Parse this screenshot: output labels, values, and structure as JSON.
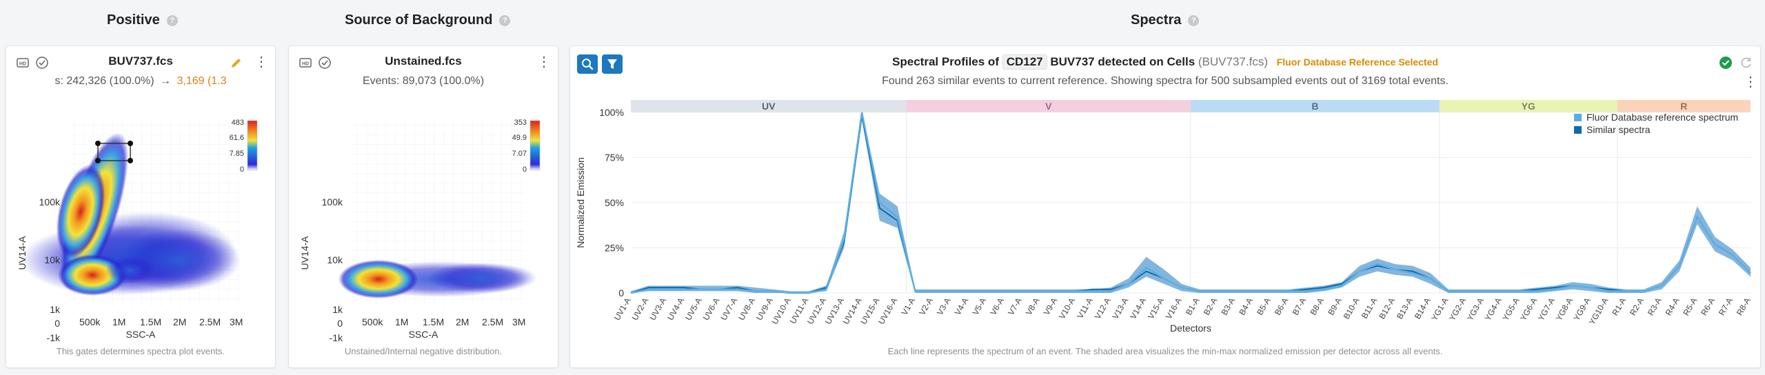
{
  "sections": {
    "positive": "Positive",
    "background": "Source of Background",
    "spectra": "Spectra"
  },
  "positive_card": {
    "file": "BUV737.fcs",
    "summary_prefix": "s: 242,326 (100.0%)",
    "arrow": "→",
    "summary_gated": "3,169 (1.3",
    "x_label": "SSC-A",
    "y_label": "UV14-A",
    "x_ticks": [
      "500k",
      "1M",
      "1.5M",
      "2M",
      "2.5M",
      "3M"
    ],
    "y_ticks": [
      "100k",
      "10k",
      "1k",
      "0",
      "-1k"
    ],
    "colorbar_ticks": [
      "483",
      "61.6",
      "7.85",
      "0"
    ],
    "footnote": "This gates determines spectra plot events."
  },
  "background_card": {
    "file": "Unstained.fcs",
    "summary": "Events: 89,073 (100.0%)",
    "x_label": "SSC-A",
    "y_label": "UV14-A",
    "x_ticks": [
      "500k",
      "1M",
      "1.5M",
      "2M",
      "2.5M",
      "3M"
    ],
    "y_ticks": [
      "100k",
      "10k",
      "1k",
      "0",
      "-1k"
    ],
    "colorbar_ticks": [
      "353",
      "49.9",
      "7.07",
      "0"
    ],
    "footnote": "Unstained/Internal negative distribution."
  },
  "spectra_card": {
    "title_pre": "Spectral Profiles of",
    "marker": "CD127",
    "fluor": "BUV737",
    "title_mid": "detected on",
    "population": "Cells",
    "file_note": "(BUV737.fcs)",
    "fluor_selected": "Fluor Database Reference Selected",
    "subtitle": "Found 263 similar events to current reference. Showing spectra for 500 subsampled events out of 3169 total events.",
    "footnote": "Each line represents the spectrum of an event. The shaded area visualizes the min-max normalized emission per detector across all events.",
    "icons": {
      "search": "search-icon",
      "filter": "filter-icon",
      "status": "check-circle-icon",
      "refresh": "refresh-icon"
    }
  },
  "chart_data": {
    "type": "line",
    "title": "",
    "xlabel": "Detectors",
    "ylabel": "Normalized Emission",
    "ylim": [
      0,
      100
    ],
    "yticks": [
      "0",
      "25%",
      "50%",
      "75%",
      "100%"
    ],
    "lasers": [
      {
        "name": "UV",
        "count": 16,
        "color": "#dfe3ea",
        "text": "#5a6170"
      },
      {
        "name": "V",
        "count": 16,
        "color": "#f4cfe0",
        "text": "#9a6b84"
      },
      {
        "name": "B",
        "count": 14,
        "color": "#b9dbf3",
        "text": "#567188"
      },
      {
        "name": "YG",
        "count": 10,
        "color": "#e9f3b4",
        "text": "#7c8560"
      },
      {
        "name": "R",
        "count": 8,
        "color": "#fbd3bb",
        "text": "#99705a"
      }
    ],
    "x": [
      "UV1-A",
      "UV2-A",
      "UV3-A",
      "UV4-A",
      "UV5-A",
      "UV6-A",
      "UV7-A",
      "UV8-A",
      "UV9-A",
      "UV10-A",
      "UV11-A",
      "UV12-A",
      "UV13-A",
      "UV14-A",
      "UV15-A",
      "UV16-A",
      "V1-A",
      "V2-A",
      "V3-A",
      "V4-A",
      "V5-A",
      "V6-A",
      "V7-A",
      "V8-A",
      "V9-A",
      "V10-A",
      "V11-A",
      "V12-A",
      "V13-A",
      "V14-A",
      "V15-A",
      "V16-A",
      "B1-A",
      "B2-A",
      "B3-A",
      "B4-A",
      "B5-A",
      "B6-A",
      "B7-A",
      "B8-A",
      "B9-A",
      "B10-A",
      "B11-A",
      "B12-A",
      "B13-A",
      "B14-A",
      "YG1-A",
      "YG2-A",
      "YG3-A",
      "YG4-A",
      "YG5-A",
      "YG6-A",
      "YG7-A",
      "YG8-A",
      "YG9-A",
      "YG10-A",
      "R1-A",
      "R2-A",
      "R3-A",
      "R4-A",
      "R5-A",
      "R6-A",
      "R7-A",
      "R8-A"
    ],
    "series": [
      {
        "name": "Fluor Database reference spectrum",
        "color": "#5aaee3",
        "values": [
          0,
          2,
          2,
          2,
          2,
          2,
          2,
          1,
          1,
          0,
          0,
          2,
          30,
          100,
          50,
          42,
          1,
          1,
          1,
          1,
          1,
          1,
          1,
          1,
          1,
          1,
          1,
          1,
          5,
          14,
          8,
          3,
          1,
          1,
          1,
          1,
          1,
          1,
          1,
          2,
          4,
          12,
          16,
          13,
          11,
          8,
          1,
          1,
          1,
          1,
          1,
          1,
          2,
          4,
          3,
          1,
          1,
          1,
          4,
          15,
          42,
          27,
          21,
          11
        ]
      },
      {
        "name": "Similar spectra",
        "color": "#0f6aad",
        "min": [
          0,
          1,
          1,
          1,
          1,
          1,
          1,
          0,
          0,
          0,
          0,
          1,
          25,
          96,
          40,
          36,
          0,
          0,
          0,
          0,
          0,
          0,
          0,
          0,
          0,
          0,
          0,
          0,
          3,
          9,
          5,
          1,
          0,
          0,
          0,
          0,
          0,
          0,
          0,
          1,
          3,
          9,
          12,
          10,
          9,
          5,
          0,
          0,
          0,
          0,
          0,
          0,
          1,
          2,
          1,
          0,
          0,
          0,
          2,
          12,
          38,
          23,
          18,
          9
        ],
        "max": [
          1,
          4,
          4,
          4,
          4,
          4,
          4,
          3,
          2,
          1,
          1,
          4,
          34,
          100,
          55,
          48,
          2,
          2,
          2,
          2,
          2,
          2,
          2,
          2,
          2,
          2,
          2,
          3,
          8,
          20,
          13,
          5,
          2,
          2,
          2,
          2,
          2,
          2,
          3,
          4,
          6,
          15,
          19,
          16,
          15,
          11,
          2,
          2,
          2,
          2,
          2,
          3,
          4,
          6,
          5,
          3,
          2,
          2,
          6,
          18,
          48,
          31,
          24,
          14
        ],
        "values": [
          0,
          3,
          3,
          3,
          2,
          2,
          3,
          1,
          1,
          0,
          0,
          3,
          28,
          98,
          47,
          40,
          1,
          1,
          1,
          1,
          1,
          1,
          1,
          1,
          1,
          1,
          2,
          2,
          5,
          12,
          8,
          3,
          1,
          1,
          1,
          1,
          1,
          1,
          2,
          3,
          5,
          12,
          15,
          13,
          12,
          8,
          1,
          1,
          1,
          1,
          1,
          2,
          3,
          4,
          3,
          2,
          1,
          1,
          4,
          15,
          42,
          27,
          21,
          11
        ]
      }
    ],
    "legend_position": "top-right"
  }
}
